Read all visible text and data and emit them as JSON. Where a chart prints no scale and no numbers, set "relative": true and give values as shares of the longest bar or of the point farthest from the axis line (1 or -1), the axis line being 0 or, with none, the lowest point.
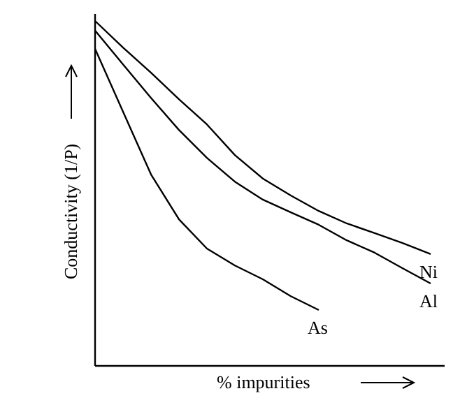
{
  "chart_data": {
    "type": "line",
    "xlabel": "% impurities",
    "ylabel": "Conductivity (1/P)",
    "relative": true,
    "categories": [
      null,
      null,
      null,
      null,
      null,
      null,
      null,
      null,
      null,
      null,
      null,
      null,
      null
    ],
    "series": [
      {
        "name": "Ni",
        "color": "#000000",
        "values": [
          1,
          0.923,
          0.85,
          0.773,
          0.7,
          0.611,
          0.543,
          0.494,
          0.449,
          0.413,
          0.385,
          0.356,
          0.324
        ]
      },
      {
        "name": "Al",
        "color": "#000000",
        "values": [
          0.972,
          0.874,
          0.777,
          0.684,
          0.603,
          0.534,
          0.482,
          0.445,
          0.409,
          0.364,
          0.328,
          0.283,
          0.239
        ]
      },
      {
        "name": "As",
        "color": "#000000",
        "values": [
          0.919,
          0.737,
          0.555,
          0.425,
          0.34,
          0.291,
          0.251,
          0.202,
          0.162,
          null,
          null,
          null,
          null
        ]
      }
    ]
  }
}
